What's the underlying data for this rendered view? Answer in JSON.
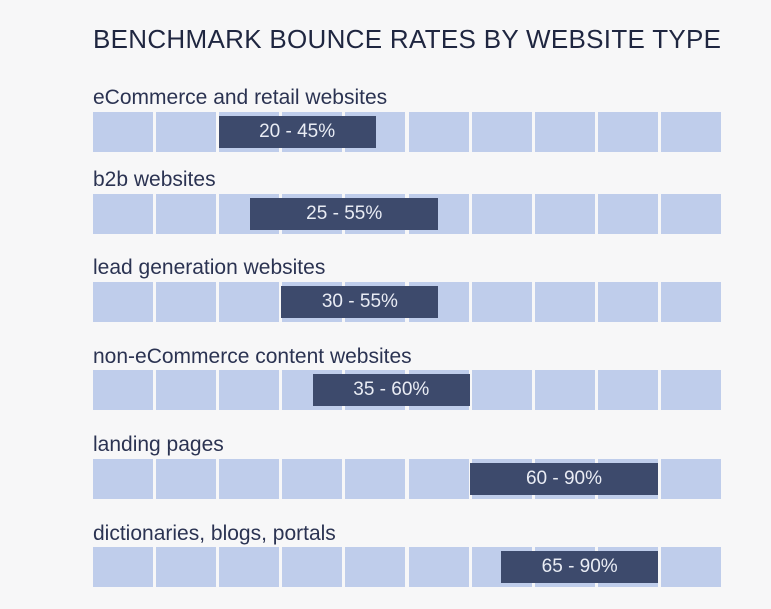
{
  "chart_data": {
    "type": "bar",
    "title": "BENCHMARK BOUNCE RATES BY WEBSITE TYPE",
    "categories": [
      "eCommerce and retail websites",
      "b2b websites",
      "lead generation websites",
      "non-eCommerce content websites",
      "landing pages",
      "dictionaries, blogs, portals"
    ],
    "ranges": [
      {
        "low": 20,
        "high": 45,
        "label": "20 - 45%"
      },
      {
        "low": 25,
        "high": 55,
        "label": "25 - 55%"
      },
      {
        "low": 30,
        "high": 55,
        "label": "30 - 55%"
      },
      {
        "low": 35,
        "high": 60,
        "label": "35 - 60%"
      },
      {
        "low": 60,
        "high": 90,
        "label": "60 - 90%"
      },
      {
        "low": 65,
        "high": 90,
        "label": "65 - 90%"
      }
    ],
    "xlim": [
      0,
      100
    ],
    "grid_cells": 10,
    "colors": {
      "cell": "#bfcdeb",
      "bar": "#3d4a6c",
      "bar_text": "#e9ecf4",
      "title": "#1f2640"
    }
  }
}
